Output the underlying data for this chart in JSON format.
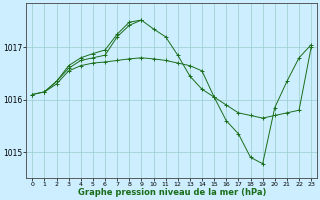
{
  "xlabel": "Graphe pression niveau de la mer (hPa)",
  "ylabel": "",
  "bg_color": "#cceeff",
  "grid_color": "#99cccc",
  "line_color": "#1a6e1a",
  "xlim": [
    -0.5,
    23.5
  ],
  "ylim": [
    1014.5,
    1017.85
  ],
  "yticks": [
    1015,
    1016,
    1017
  ],
  "xticks": [
    0,
    1,
    2,
    3,
    4,
    5,
    6,
    7,
    8,
    9,
    10,
    11,
    12,
    13,
    14,
    15,
    16,
    17,
    18,
    19,
    20,
    21,
    22,
    23
  ],
  "series": [
    {
      "x": [
        0,
        1,
        2,
        3,
        4,
        5,
        6,
        7,
        8,
        9,
        10,
        11,
        12,
        13,
        14,
        15,
        16,
        17,
        18,
        19,
        20,
        21,
        22,
        23
      ],
      "y": [
        1016.1,
        1016.15,
        1016.3,
        1016.55,
        1016.65,
        1016.7,
        1016.72,
        1016.75,
        1016.78,
        1016.8,
        1016.78,
        1016.75,
        1016.7,
        1016.65,
        1016.55,
        1016.05,
        1015.9,
        1015.75,
        1015.7,
        1015.65,
        1015.7,
        1015.75,
        1015.8,
        1017.0
      ]
    },
    {
      "x": [
        0,
        1,
        2,
        3,
        4,
        5,
        6,
        7,
        8,
        9,
        10,
        11,
        12,
        13,
        14,
        15,
        16,
        17,
        18,
        19,
        20,
        21,
        22,
        23
      ],
      "y": [
        1016.1,
        1016.15,
        1016.35,
        1016.6,
        1016.75,
        1016.8,
        1016.85,
        1017.2,
        1017.42,
        1017.52,
        1017.35,
        1017.2,
        1016.85,
        1016.45,
        1016.2,
        1016.05,
        1015.6,
        1015.35,
        1014.9,
        1014.78,
        1015.85,
        1016.35,
        1016.8,
        1017.05
      ]
    },
    {
      "x": [
        1,
        2,
        3,
        4,
        5,
        6,
        7,
        8,
        9
      ],
      "y": [
        1016.15,
        1016.35,
        1016.65,
        1016.8,
        1016.88,
        1016.95,
        1017.25,
        1017.48,
        1017.52
      ]
    }
  ]
}
